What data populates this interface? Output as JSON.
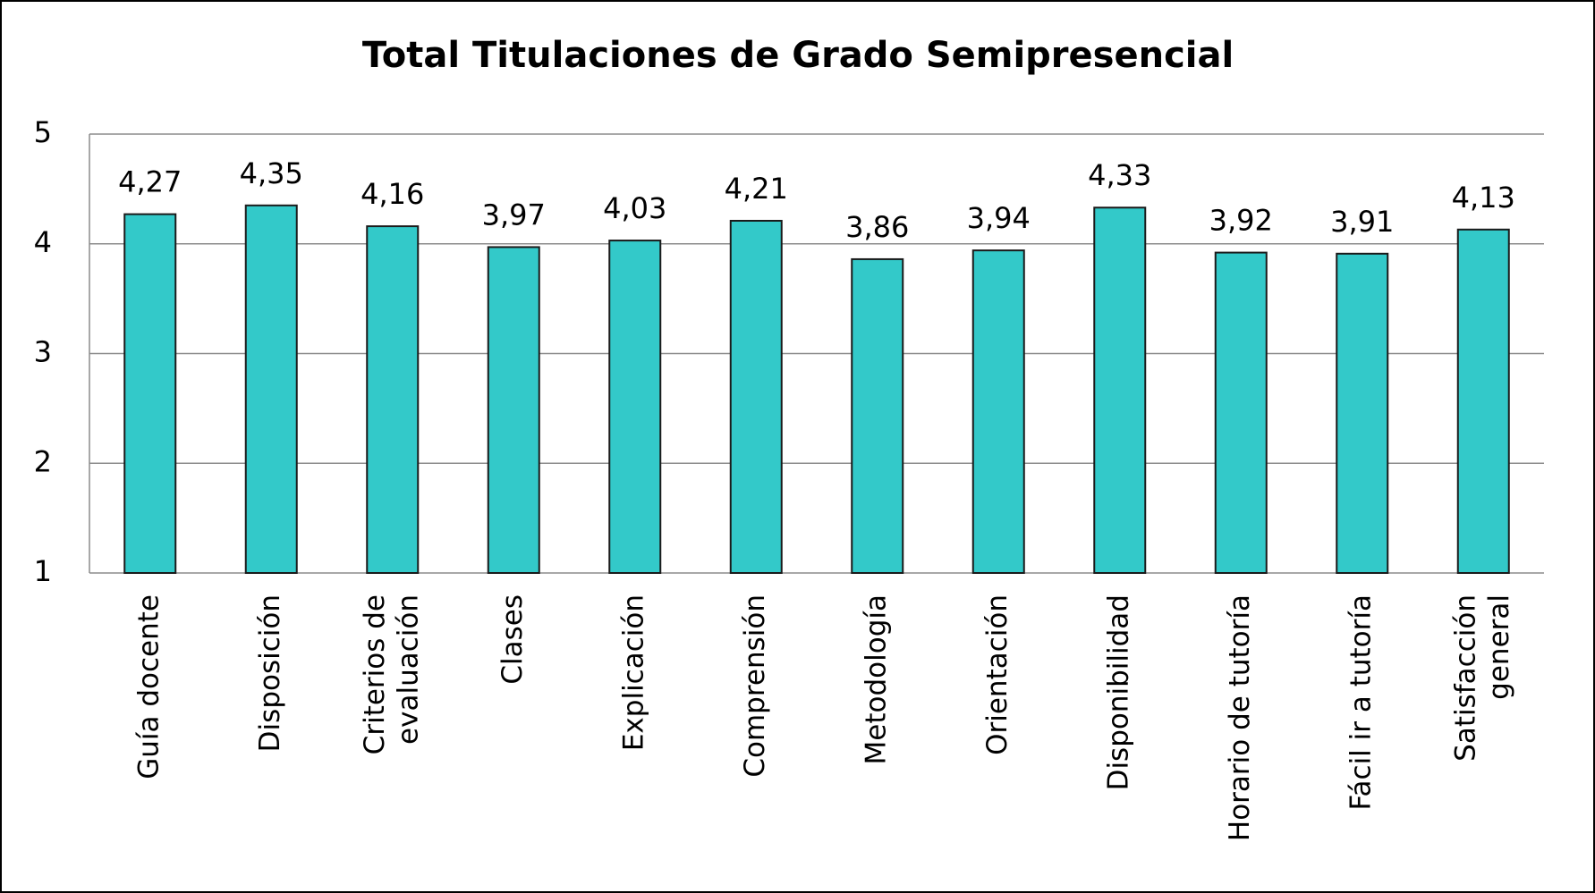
{
  "chart_data": {
    "type": "bar",
    "title": "Total Titulaciones de Grado Semipresencial",
    "categories": [
      "Guía docente",
      "Disposición",
      "Criterios de evaluación",
      "Clases",
      "Explicación",
      "Comprensión",
      "Metodología",
      "Orientación",
      "Disponibilidad",
      "Horario de tutoría",
      "Fácil ir a tutoría",
      "Satisfacción general"
    ],
    "values": [
      4.27,
      4.35,
      4.16,
      3.97,
      4.03,
      4.21,
      3.86,
      3.94,
      4.33,
      3.92,
      3.91,
      4.13
    ],
    "value_labels": [
      "4,27",
      "4,35",
      "4,16",
      "3,97",
      "4,03",
      "4,21",
      "3,86",
      "3,94",
      "4,33",
      "3,92",
      "3,91",
      "4,13"
    ],
    "color": "#33c9c9",
    "ylim": [
      1,
      5
    ],
    "yticks": [
      1,
      2,
      3,
      4,
      5
    ],
    "grid": true
  }
}
